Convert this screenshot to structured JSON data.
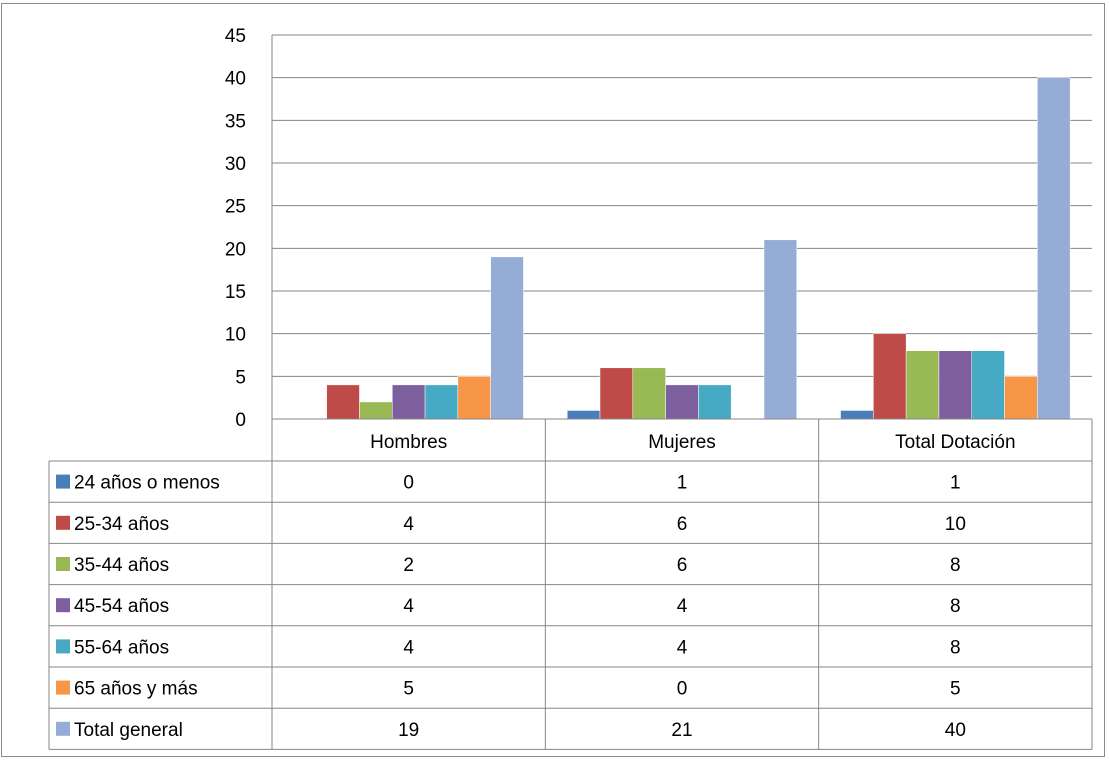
{
  "chart_data": {
    "type": "bar",
    "categories": [
      "Hombres",
      "Mujeres",
      "Total Dotación"
    ],
    "ylim": [
      0,
      45
    ],
    "yticks": [
      0,
      5,
      10,
      15,
      20,
      25,
      30,
      35,
      40,
      45
    ],
    "grid": true,
    "legend": "data-table-left",
    "series": [
      {
        "name": "24 años o menos",
        "color": "#4a7ebb",
        "values": [
          0,
          1,
          1
        ]
      },
      {
        "name": "25-34 años",
        "color": "#be4b48",
        "values": [
          4,
          6,
          10
        ]
      },
      {
        "name": "35-44 años",
        "color": "#98b954",
        "values": [
          2,
          6,
          8
        ]
      },
      {
        "name": "45-54 años",
        "color": "#7d5fa0",
        "values": [
          4,
          4,
          8
        ]
      },
      {
        "name": "55-64 años",
        "color": "#46aac5",
        "values": [
          4,
          4,
          8
        ]
      },
      {
        "name": "65 años y más",
        "color": "#f79646",
        "values": [
          5,
          0,
          5
        ]
      },
      {
        "name": "Total general",
        "color": "#95add6",
        "values": [
          19,
          21,
          40
        ]
      }
    ]
  }
}
